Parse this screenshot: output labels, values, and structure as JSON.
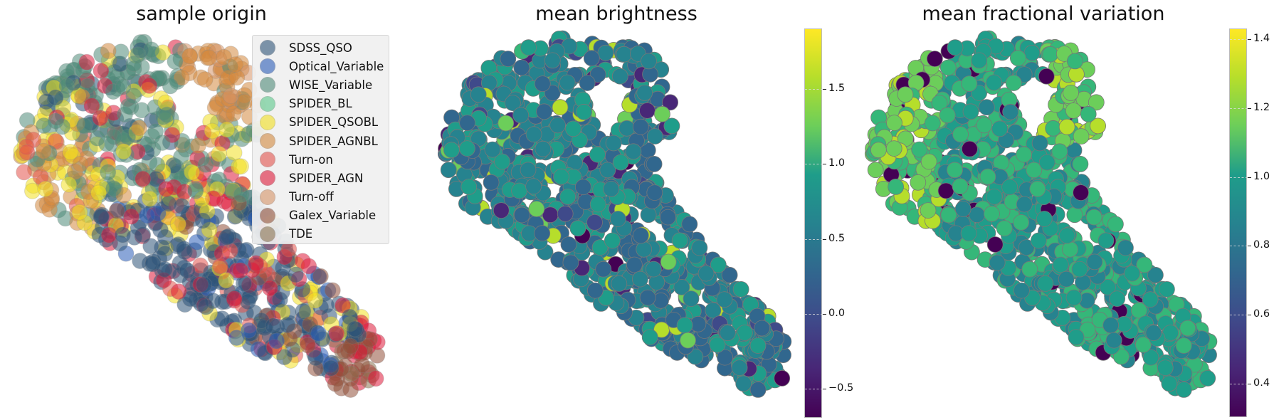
{
  "chart_data": [
    {
      "type": "scatter",
      "title": "sample origin",
      "xlabel": "",
      "ylabel": "",
      "axes_visible": false,
      "grid": false,
      "legend_position": "upper right",
      "legend": [
        {
          "label": "SDSS_QSO",
          "color": "#2e5478"
        },
        {
          "label": "Optical_Variable",
          "color": "#2a5cb8"
        },
        {
          "label": "WISE_Variable",
          "color": "#4f8a78"
        },
        {
          "label": "SPIDER_BL",
          "color": "#5ac88a"
        },
        {
          "label": "SPIDER_QSOBL",
          "color": "#f2e021"
        },
        {
          "label": "SPIDER_AGNBL",
          "color": "#d3893e"
        },
        {
          "label": "Turn-on",
          "color": "#e3524b"
        },
        {
          "label": "SPIDER_AGN",
          "color": "#de1a3a"
        },
        {
          "label": "Turn-off",
          "color": "#d69367"
        },
        {
          "label": "Galex_Variable",
          "color": "#91513a"
        },
        {
          "label": "TDE",
          "color": "#8c7452"
        }
      ],
      "note": "2D embedding point cloud (tadpole shape) colored by sample origin; points semi-transparent"
    },
    {
      "type": "scatter",
      "title": "mean brightness",
      "colormap": "viridis",
      "colorbar": {
        "min": -0.7,
        "max": 1.9,
        "ticks": [
          -0.5,
          0.0,
          0.5,
          1.0,
          1.5
        ],
        "tick_labels": [
          "−0.5",
          "0.0",
          "0.5",
          "1.0",
          "1.5"
        ]
      },
      "axes_visible": false,
      "note": "same embedding; most points around 0.3–0.8, few outliers near 1.8 and −0.7"
    },
    {
      "type": "scatter",
      "title": "mean fractional variation",
      "colormap": "viridis",
      "colorbar": {
        "min": 0.3,
        "max": 1.43,
        "ticks": [
          0.4,
          0.6,
          0.8,
          1.0,
          1.2,
          1.4
        ],
        "tick_labels": [
          "0.4",
          "0.6",
          "0.8",
          "1.0",
          "1.2",
          "1.4"
        ]
      },
      "axes_visible": false,
      "note": "same embedding; higher values (~1.1–1.3) on left/top-right rim, lower (~0.8–1.0) in body and tail"
    }
  ]
}
